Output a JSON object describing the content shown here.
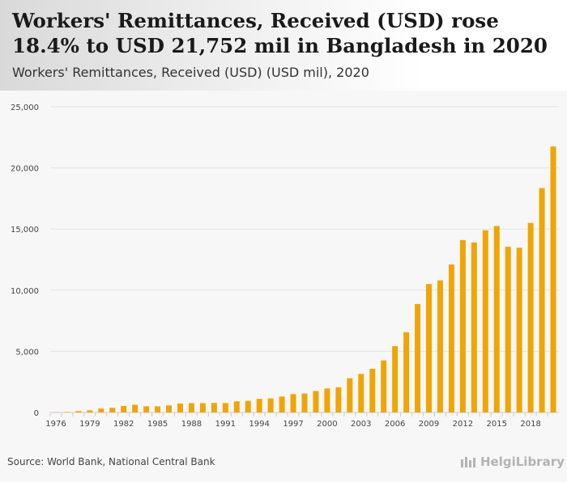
{
  "header": {
    "title": "Workers' Remittances, Received (USD) rose 18.4% to USD 21,752 mil in Bangladesh in 2020",
    "subtitle": "Workers' Remittances, Received (USD) (USD mil), 2020"
  },
  "footer": {
    "source": "Source: World Bank, National Central Bank",
    "brand": "HelgiLibrary"
  },
  "chart_data": {
    "type": "bar",
    "title": "Workers' Remittances, Received (USD) rose 18.4% to USD 21,752 mil in Bangladesh in 2020",
    "subtitle": "Workers' Remittances, Received (USD) (USD mil), 2020",
    "xlabel": "",
    "ylabel": "",
    "ylim": [
      0,
      25000
    ],
    "yticks": [
      0,
      5000,
      10000,
      15000,
      20000,
      25000
    ],
    "ytick_labels": [
      "0",
      "5,000",
      "10,000",
      "15,000",
      "20,000",
      "25,000"
    ],
    "xtick_labels": [
      "1976",
      "1979",
      "1982",
      "1985",
      "1988",
      "1991",
      "1994",
      "1997",
      "2000",
      "2003",
      "2006",
      "2009",
      "2012",
      "2015",
      "2018"
    ],
    "grid": true,
    "bar_color": "#f0a500",
    "categories": [
      1976,
      1977,
      1978,
      1979,
      1980,
      1981,
      1982,
      1983,
      1984,
      1985,
      1986,
      1987,
      1988,
      1989,
      1990,
      1991,
      1992,
      1993,
      1994,
      1995,
      1996,
      1997,
      1998,
      1999,
      2000,
      2001,
      2002,
      2003,
      2004,
      2005,
      2006,
      2007,
      2008,
      2009,
      2010,
      2011,
      2012,
      2013,
      2014,
      2015,
      2016,
      2017,
      2018,
      2019,
      2020
    ],
    "values": [
      20,
      40,
      110,
      170,
      320,
      380,
      530,
      630,
      500,
      500,
      580,
      730,
      760,
      760,
      780,
      770,
      910,
      950,
      1110,
      1150,
      1300,
      1500,
      1550,
      1750,
      1960,
      2060,
      2800,
      3150,
      3570,
      4250,
      5420,
      6560,
      8870,
      10500,
      10800,
      12100,
      14100,
      13900,
      14900,
      15250,
      13550,
      13470,
      15500,
      18350,
      21752
    ]
  }
}
